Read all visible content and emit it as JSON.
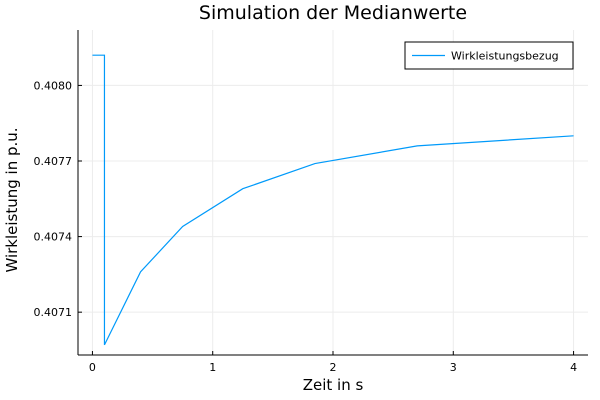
{
  "chart_data": {
    "type": "line",
    "title": "Simulation der Medianwerte",
    "xlabel": "Zeit in s",
    "ylabel": "Wirkleistung in p.u.",
    "xlim": [
      -0.12,
      4.12
    ],
    "ylim": [
      0.40693,
      0.40822
    ],
    "xticks": [
      0,
      1,
      2,
      3,
      4
    ],
    "xtick_labels": [
      "0",
      "1",
      "2",
      "3",
      "4"
    ],
    "yticks": [
      0.4071,
      0.4074,
      0.4077,
      0.408
    ],
    "ytick_labels": [
      "0.4071",
      "0.4074",
      "0.4077",
      "0.4080"
    ],
    "grid": true,
    "legend_position": "top-right",
    "series": [
      {
        "name": "Wirkleistungsbezug",
        "color": "#009AFA",
        "x": [
          0,
          0.1,
          0.1,
          0.1,
          0.4,
          0.75,
          1.25,
          1.85,
          2.7,
          4.0
        ],
        "y": [
          0.40812,
          0.40812,
          0.40812,
          0.40697,
          0.40726,
          0.40744,
          0.40759,
          0.40769,
          0.40776,
          0.4078
        ]
      }
    ]
  }
}
